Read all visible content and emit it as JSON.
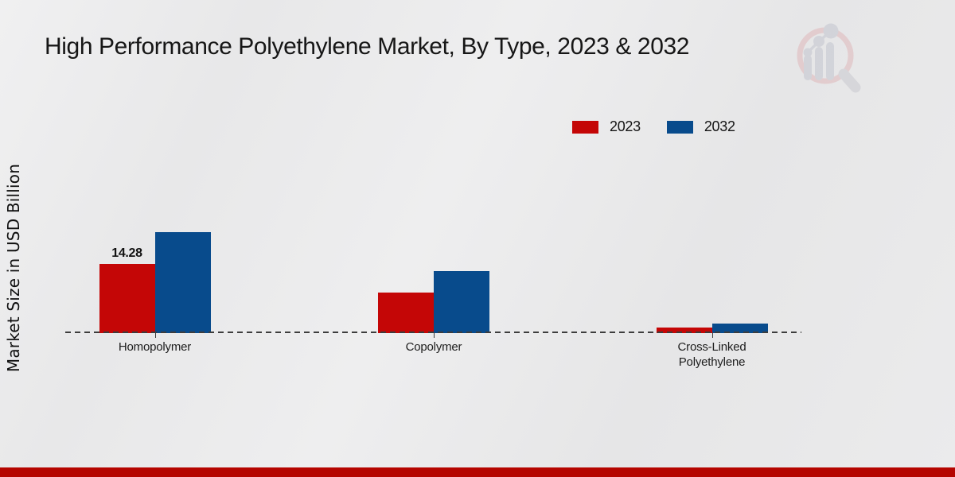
{
  "title": "High Performance Polyethylene Market, By Type, 2023 & 2032",
  "ylabel": "Market Size in USD Billion",
  "branding": {
    "logo_icon": "magnifier-bar-chart-watermark-logo",
    "bottom_bar_color": "#b50500"
  },
  "chart_data": {
    "type": "bar",
    "title": "High Performance Polyethylene Market, By Type, 2023 & 2032",
    "xlabel": "",
    "ylabel": "Market Size in USD Billion",
    "categories": [
      "Homopolymer",
      "Copolymer",
      "Cross-Linked Polyethylene"
    ],
    "series": [
      {
        "name": "2023",
        "color": "#c40606",
        "values": [
          14.28,
          8.4,
          1.1
        ]
      },
      {
        "name": "2032",
        "color": "#084b8c",
        "values": [
          20.8,
          12.8,
          2.0
        ]
      }
    ],
    "data_labels": [
      {
        "series": "2023",
        "category": "Homopolymer",
        "text": "14.28"
      }
    ],
    "legend": {
      "position": "top-right",
      "entries": [
        "2023",
        "2032"
      ]
    },
    "axes": {
      "y_axis_visible": false,
      "gridlines": false,
      "baseline_style": "dashed",
      "baseline_color": "#3d3d3d"
    }
  }
}
